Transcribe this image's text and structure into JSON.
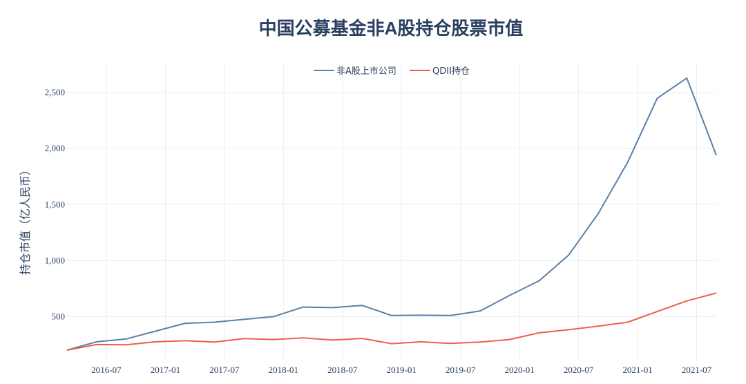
{
  "chart_data": {
    "type": "line",
    "title": "中国公募基金非A股持仓股票市值",
    "xlabel": "",
    "ylabel": "持仓市值（亿人民币）",
    "legend_position": "top-center",
    "grid": true,
    "x": [
      "2016-03",
      "2016-06",
      "2016-09",
      "2016-12",
      "2017-03",
      "2017-06",
      "2017-09",
      "2017-12",
      "2018-03",
      "2018-06",
      "2018-09",
      "2018-12",
      "2019-03",
      "2019-06",
      "2019-09",
      "2019-12",
      "2020-03",
      "2020-06",
      "2020-09",
      "2020-12",
      "2021-03",
      "2021-06",
      "2021-09"
    ],
    "x_ticks": [
      "2016-07",
      "2017-01",
      "2017-07",
      "2018-01",
      "2018-07",
      "2019-01",
      "2019-07",
      "2020-01",
      "2020-07",
      "2021-01",
      "2021-07"
    ],
    "y_ticks": [
      "500",
      "1,000",
      "1,500",
      "2,000",
      "2,500"
    ],
    "ylim": [
      120,
      2760
    ],
    "series": [
      {
        "name": "非A股上市公司",
        "color": "#5b7fa8",
        "values": [
          200,
          275,
          300,
          370,
          440,
          450,
          475,
          500,
          585,
          580,
          600,
          510,
          512,
          510,
          550,
          690,
          820,
          1050,
          1420,
          1880,
          2450,
          2630,
          1940
        ]
      },
      {
        "name": "QDII持仓",
        "color": "#ee5e4b",
        "values": [
          200,
          250,
          248,
          275,
          285,
          273,
          303,
          295,
          310,
          290,
          305,
          258,
          275,
          260,
          273,
          295,
          355,
          383,
          415,
          450,
          545,
          640,
          710
        ]
      }
    ]
  }
}
